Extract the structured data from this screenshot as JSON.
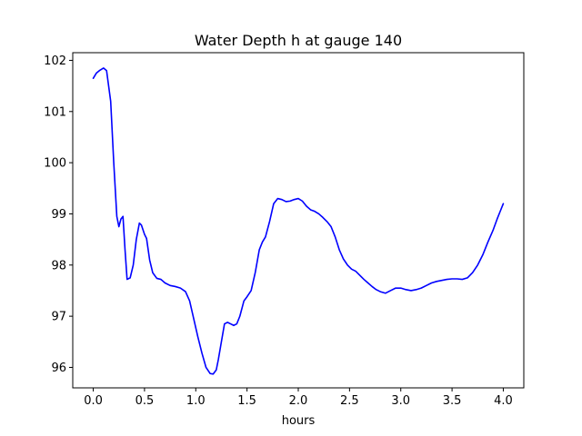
{
  "chart_data": {
    "type": "line",
    "title": "Water Depth h at gauge 140",
    "xlabel": "hours",
    "ylabel": "",
    "xlim": [
      -0.2,
      4.2
    ],
    "ylim": [
      95.6,
      102.15
    ],
    "xticks": [
      0.0,
      0.5,
      1.0,
      1.5,
      2.0,
      2.5,
      3.0,
      3.5,
      4.0
    ],
    "xtick_labels": [
      "0.0",
      "0.5",
      "1.0",
      "1.5",
      "2.0",
      "2.5",
      "3.0",
      "3.5",
      "4.0"
    ],
    "yticks": [
      96,
      97,
      98,
      99,
      100,
      101,
      102
    ],
    "ytick_labels": [
      "96",
      "97",
      "98",
      "99",
      "100",
      "101",
      "102"
    ],
    "grid": false,
    "legend": false,
    "series": [
      {
        "color": "#0000ff",
        "x": [
          0.0,
          0.03,
          0.06,
          0.1,
          0.13,
          0.17,
          0.2,
          0.23,
          0.25,
          0.27,
          0.29,
          0.31,
          0.33,
          0.36,
          0.39,
          0.42,
          0.45,
          0.47,
          0.5,
          0.52,
          0.55,
          0.58,
          0.62,
          0.66,
          0.7,
          0.75,
          0.8,
          0.85,
          0.9,
          0.94,
          0.98,
          1.02,
          1.06,
          1.1,
          1.14,
          1.17,
          1.2,
          1.22,
          1.25,
          1.28,
          1.31,
          1.34,
          1.37,
          1.4,
          1.43,
          1.47,
          1.5,
          1.54,
          1.58,
          1.62,
          1.65,
          1.68,
          1.72,
          1.76,
          1.8,
          1.84,
          1.88,
          1.92,
          1.96,
          2.0,
          2.04,
          2.08,
          2.12,
          2.16,
          2.2,
          2.24,
          2.28,
          2.32,
          2.36,
          2.4,
          2.44,
          2.48,
          2.52,
          2.56,
          2.6,
          2.64,
          2.68,
          2.72,
          2.76,
          2.8,
          2.85,
          2.9,
          2.95,
          3.0,
          3.05,
          3.1,
          3.15,
          3.2,
          3.25,
          3.3,
          3.35,
          3.4,
          3.45,
          3.5,
          3.55,
          3.6,
          3.65,
          3.7,
          3.75,
          3.8,
          3.85,
          3.9,
          3.94,
          3.97,
          4.0
        ],
        "y": [
          101.65,
          101.75,
          101.8,
          101.85,
          101.8,
          101.2,
          100.0,
          98.95,
          98.75,
          98.9,
          98.95,
          98.3,
          97.72,
          97.75,
          98.0,
          98.5,
          98.82,
          98.78,
          98.6,
          98.52,
          98.1,
          97.85,
          97.74,
          97.72,
          97.65,
          97.6,
          97.58,
          97.55,
          97.48,
          97.3,
          96.95,
          96.6,
          96.28,
          96.0,
          95.88,
          95.87,
          95.95,
          96.15,
          96.5,
          96.85,
          96.88,
          96.85,
          96.82,
          96.85,
          97.0,
          97.3,
          97.38,
          97.5,
          97.85,
          98.3,
          98.45,
          98.55,
          98.85,
          99.2,
          99.3,
          99.28,
          99.24,
          99.25,
          99.28,
          99.3,
          99.25,
          99.15,
          99.08,
          99.05,
          99.0,
          98.93,
          98.85,
          98.75,
          98.55,
          98.3,
          98.12,
          98.0,
          97.92,
          97.88,
          97.8,
          97.72,
          97.65,
          97.58,
          97.52,
          97.48,
          97.45,
          97.5,
          97.55,
          97.55,
          97.52,
          97.5,
          97.52,
          97.55,
          97.6,
          97.65,
          97.68,
          97.7,
          97.72,
          97.73,
          97.73,
          97.72,
          97.75,
          97.85,
          98.0,
          98.2,
          98.45,
          98.68,
          98.9,
          99.05,
          99.2
        ]
      }
    ]
  }
}
